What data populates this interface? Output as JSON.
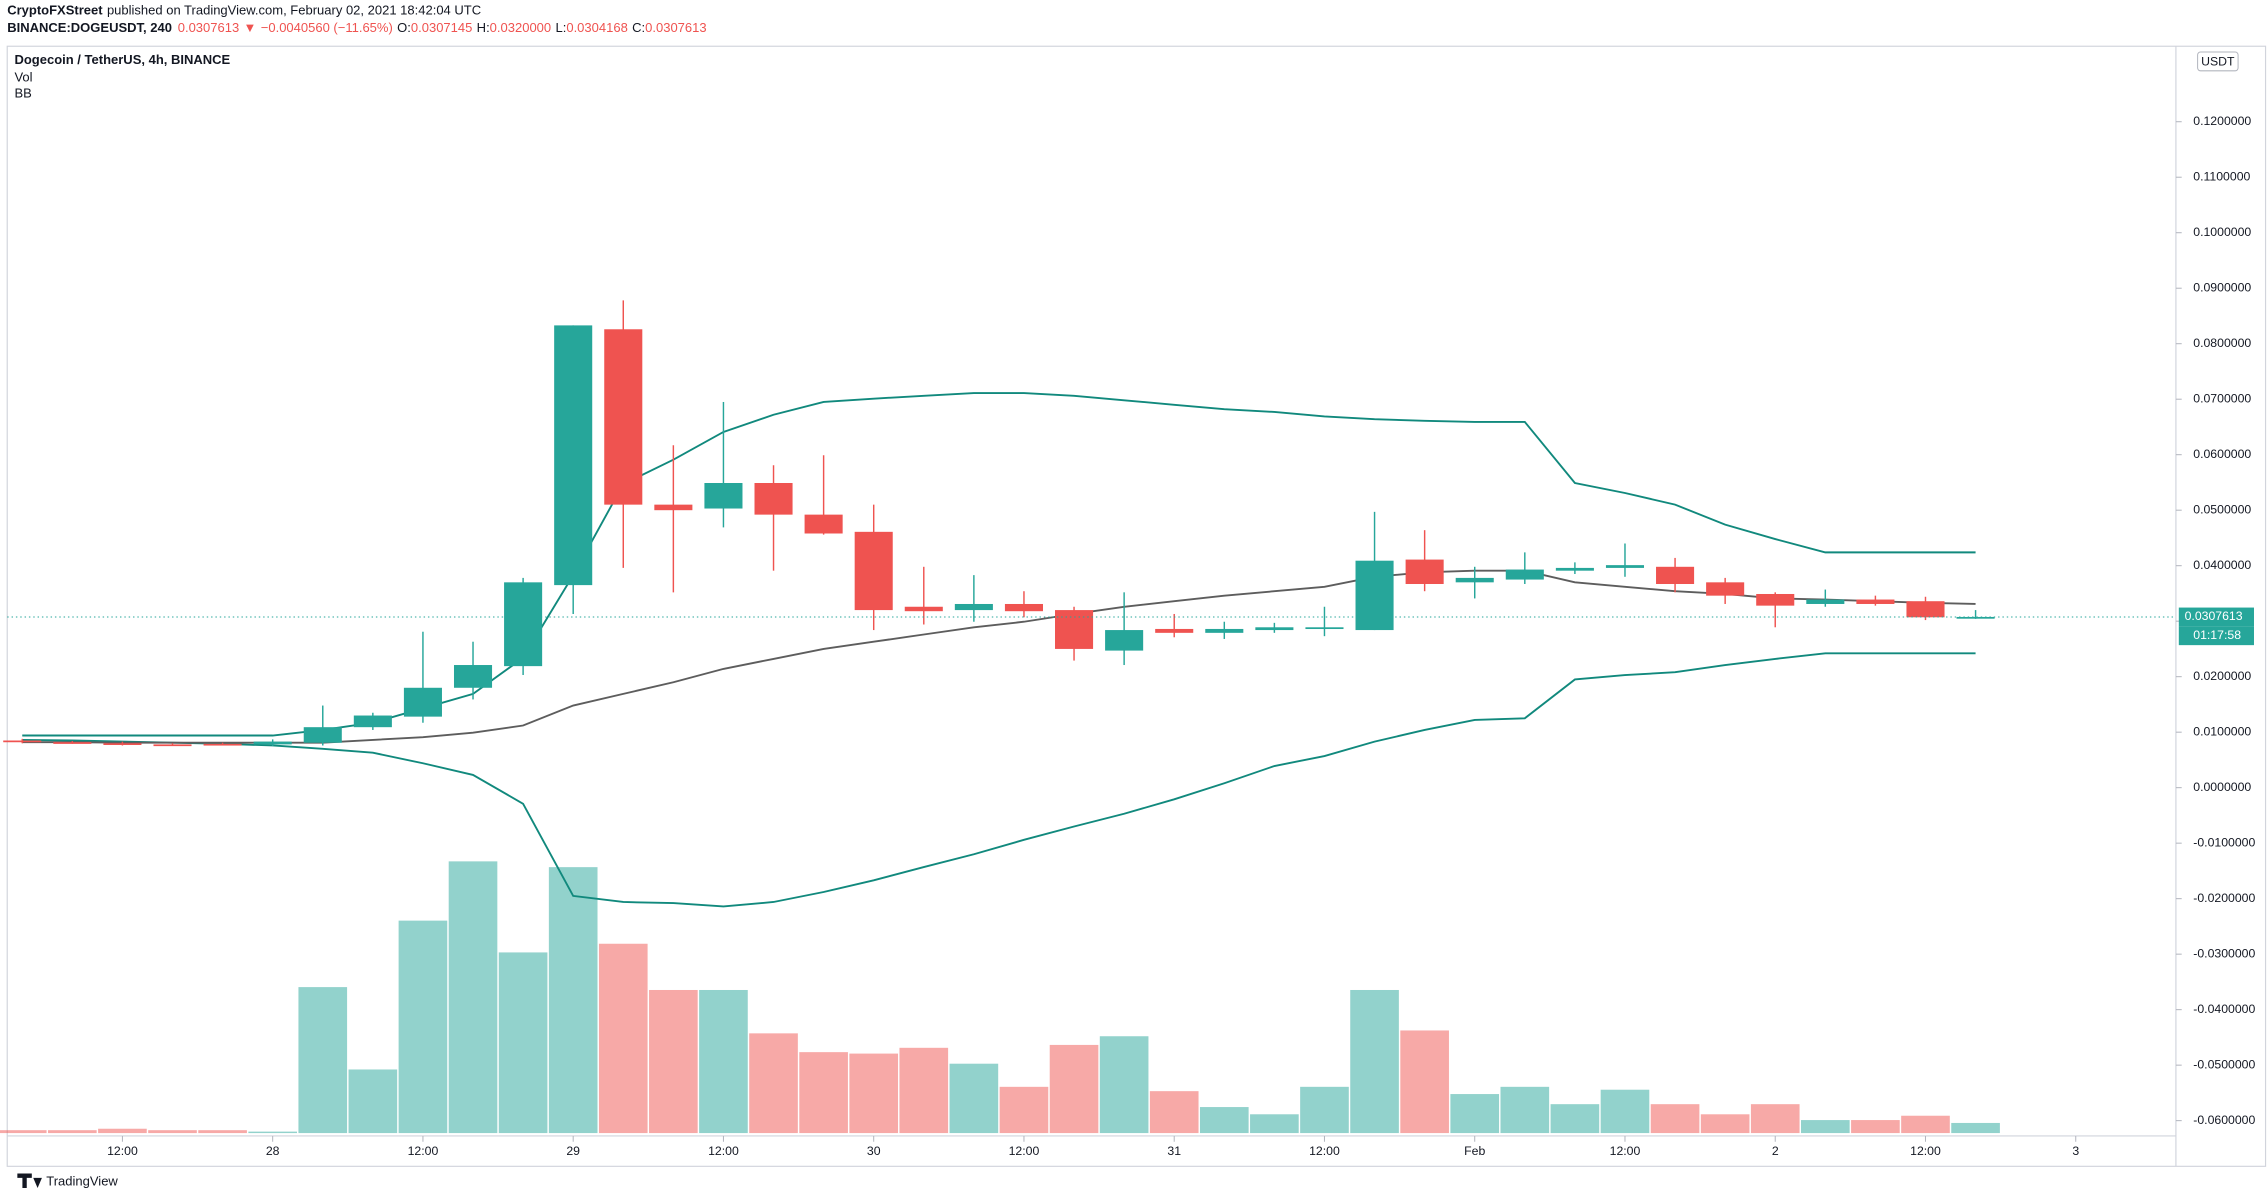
{
  "header": {
    "author": "CryptoFXStreet",
    "published": "published on TradingView.com, February 02, 2021 18:42:04 UTC",
    "symbol": "BINANCE:DOGEUSDT, 240",
    "last": "0.0307613",
    "arrow": "▼",
    "change": "−0.0040560 (−11.65%)",
    "ohlc": [
      {
        "label": "O:",
        "value": "0.0307145"
      },
      {
        "label": "H:",
        "value": "0.0320000"
      },
      {
        "label": "L:",
        "value": "0.0304168"
      },
      {
        "label": "C:",
        "value": "0.0307613"
      }
    ]
  },
  "chart_data": {
    "type": "candlestick",
    "title": "Dogecoin / TetherUS, 4h, BINANCE",
    "indicators": [
      "Vol",
      "BB"
    ],
    "currency": "USDT",
    "colors": {
      "up": "#26a69a",
      "down": "#ef5350",
      "band": "#11897d",
      "basis": "#5d5d5d"
    },
    "xlim": [
      -0.3,
      43
    ],
    "ylim": [
      -0.0625,
      0.1336
    ],
    "xticks": [
      {
        "value": 2,
        "label": "12:00"
      },
      {
        "value": 5,
        "label": "28"
      },
      {
        "value": 8,
        "label": "12:00"
      },
      {
        "value": 11,
        "label": "29"
      },
      {
        "value": 14,
        "label": "12:00"
      },
      {
        "value": 17,
        "label": "30"
      },
      {
        "value": 20,
        "label": "12:00"
      },
      {
        "value": 23,
        "label": "31"
      },
      {
        "value": 26,
        "label": "12:00"
      },
      {
        "value": 29,
        "label": "Feb"
      },
      {
        "value": 32,
        "label": "12:00"
      },
      {
        "value": 35,
        "label": "2"
      },
      {
        "value": 38,
        "label": "12:00"
      },
      {
        "value": 41,
        "label": "3"
      }
    ],
    "yticks": [
      {
        "value": -0.06,
        "label": "-0.0600000"
      },
      {
        "value": -0.05,
        "label": "-0.0500000"
      },
      {
        "value": -0.04,
        "label": "-0.0400000"
      },
      {
        "value": -0.03,
        "label": "-0.0300000"
      },
      {
        "value": -0.02,
        "label": "-0.0200000"
      },
      {
        "value": -0.01,
        "label": "-0.0100000"
      },
      {
        "value": 0,
        "label": "0.0000000"
      },
      {
        "value": 0.01,
        "label": "0.0100000"
      },
      {
        "value": 0.02,
        "label": "0.0200000"
      },
      {
        "value": 0.03,
        "label": "0.0300000"
      },
      {
        "value": 0.04,
        "label": "0.0400000"
      },
      {
        "value": 0.05,
        "label": "0.0500000"
      },
      {
        "value": 0.06,
        "label": "0.0600000"
      },
      {
        "value": 0.07,
        "label": "0.0700000"
      },
      {
        "value": 0.08,
        "label": "0.0800000"
      },
      {
        "value": 0.09,
        "label": "0.0900000"
      },
      {
        "value": 0.1,
        "label": "0.1000000"
      },
      {
        "value": 0.11,
        "label": "0.1100000"
      },
      {
        "value": 0.12,
        "label": "0.1200000"
      }
    ],
    "open": [
      0.0085,
      0.0082,
      0.008,
      0.0078,
      0.0079,
      0.0078,
      0.0081,
      0.0109,
      0.0128,
      0.018,
      0.0219,
      0.0365,
      0.0826,
      0.051,
      0.0503,
      0.0549,
      0.0492,
      0.0461,
      0.0326,
      0.032,
      0.0331,
      0.032,
      0.0247,
      0.0286,
      0.0279,
      0.0284,
      0.0286,
      0.0284,
      0.0411,
      0.037,
      0.0375,
      0.0391,
      0.0396,
      0.0398,
      0.037,
      0.0349,
      0.0331,
      0.0339,
      0.0336,
      0.0307145
    ],
    "high": [
      0.0088,
      0.0084,
      0.0083,
      0.008,
      0.0081,
      0.0087,
      0.0148,
      0.0135,
      0.0281,
      0.0263,
      0.0378,
      0.0833,
      0.0878,
      0.0617,
      0.0695,
      0.0581,
      0.0599,
      0.051,
      0.0398,
      0.0383,
      0.0354,
      0.0326,
      0.0352,
      0.0313,
      0.0299,
      0.0297,
      0.0326,
      0.0497,
      0.0464,
      0.0398,
      0.0424,
      0.0406,
      0.044,
      0.0414,
      0.0378,
      0.0352,
      0.0357,
      0.0346,
      0.0344,
      0.032
    ],
    "low": [
      0.008,
      0.0079,
      0.0076,
      0.0076,
      0.0076,
      0.0075,
      0.0076,
      0.0104,
      0.0117,
      0.0159,
      0.0203,
      0.0313,
      0.0396,
      0.0352,
      0.0469,
      0.0391,
      0.0456,
      0.0284,
      0.0294,
      0.0299,
      0.0307,
      0.0229,
      0.0221,
      0.0271,
      0.0268,
      0.0279,
      0.0273,
      0.0284,
      0.0354,
      0.0341,
      0.0367,
      0.0385,
      0.038,
      0.0352,
      0.0331,
      0.0289,
      0.0326,
      0.0328,
      0.0302,
      0.0304168
    ],
    "close": [
      0.0082,
      0.008,
      0.0078,
      0.0077,
      0.0077,
      0.0083,
      0.0109,
      0.013,
      0.018,
      0.0221,
      0.037,
      0.0833,
      0.051,
      0.05,
      0.0549,
      0.0492,
      0.0458,
      0.032,
      0.0318,
      0.0331,
      0.0318,
      0.025,
      0.0284,
      0.0279,
      0.0286,
      0.0289,
      0.0289,
      0.0409,
      0.0367,
      0.0378,
      0.0393,
      0.0396,
      0.0401,
      0.0367,
      0.0346,
      0.0328,
      0.0339,
      0.0331,
      0.0307,
      0.0307613
    ],
    "volume": [
      2,
      2,
      3,
      2,
      2,
      1,
      101,
      44,
      147,
      188,
      125,
      184,
      131,
      99,
      99,
      69,
      56,
      55,
      59,
      48,
      32,
      61,
      67,
      29,
      18,
      13,
      32,
      99,
      71,
      27,
      32,
      20,
      30,
      20,
      13,
      20,
      9,
      9,
      12,
      7
    ],
    "bb_upper": [
      0.0094,
      0.0094,
      0.0094,
      0.0094,
      0.0094,
      0.0094,
      0.0104,
      0.0117,
      0.0143,
      0.0169,
      0.0234,
      0.0383,
      0.0547,
      0.0591,
      0.0641,
      0.0672,
      0.0695,
      0.0701,
      0.0706,
      0.0711,
      0.0711,
      0.0706,
      0.0698,
      0.069,
      0.0682,
      0.0677,
      0.0669,
      0.0664,
      0.0661,
      0.0659,
      0.0659,
      0.0549,
      0.0531,
      0.051,
      0.0474,
      0.0448,
      0.0424,
      0.0424,
      0.0424,
      0.0424
    ],
    "bb_basis": [
      0.0082,
      0.0082,
      0.0081,
      0.0081,
      0.0081,
      0.0081,
      0.0081,
      0.0086,
      0.0091,
      0.0099,
      0.0112,
      0.0148,
      0.0169,
      0.019,
      0.0214,
      0.0232,
      0.025,
      0.0263,
      0.0276,
      0.0289,
      0.0299,
      0.0313,
      0.0326,
      0.0336,
      0.0346,
      0.0354,
      0.0362,
      0.038,
      0.0388,
      0.0391,
      0.0391,
      0.037,
      0.0362,
      0.0354,
      0.0349,
      0.0341,
      0.0339,
      0.0336,
      0.0333,
      0.0331
    ],
    "bb_lower": [
      0.0086,
      0.0085,
      0.0083,
      0.0081,
      0.0079,
      0.0076,
      0.007,
      0.0063,
      0.0044,
      0.0023,
      -0.0029,
      -0.0195,
      -0.0206,
      -0.0208,
      -0.0214,
      -0.0206,
      -0.0188,
      -0.0167,
      -0.0143,
      -0.012,
      -0.0094,
      -0.007,
      -0.0047,
      -0.0021,
      0.0008,
      0.0039,
      0.0057,
      0.0083,
      0.0104,
      0.0122,
      0.0125,
      0.0195,
      0.0203,
      0.0208,
      0.0221,
      0.0232,
      0.0242,
      0.0242,
      0.0242,
      0.0242
    ],
    "last_price": {
      "value": 0.0307613,
      "label": "0.0307613"
    },
    "countdown": "01:17:58"
  },
  "footer": {
    "brand": "TradingView"
  }
}
